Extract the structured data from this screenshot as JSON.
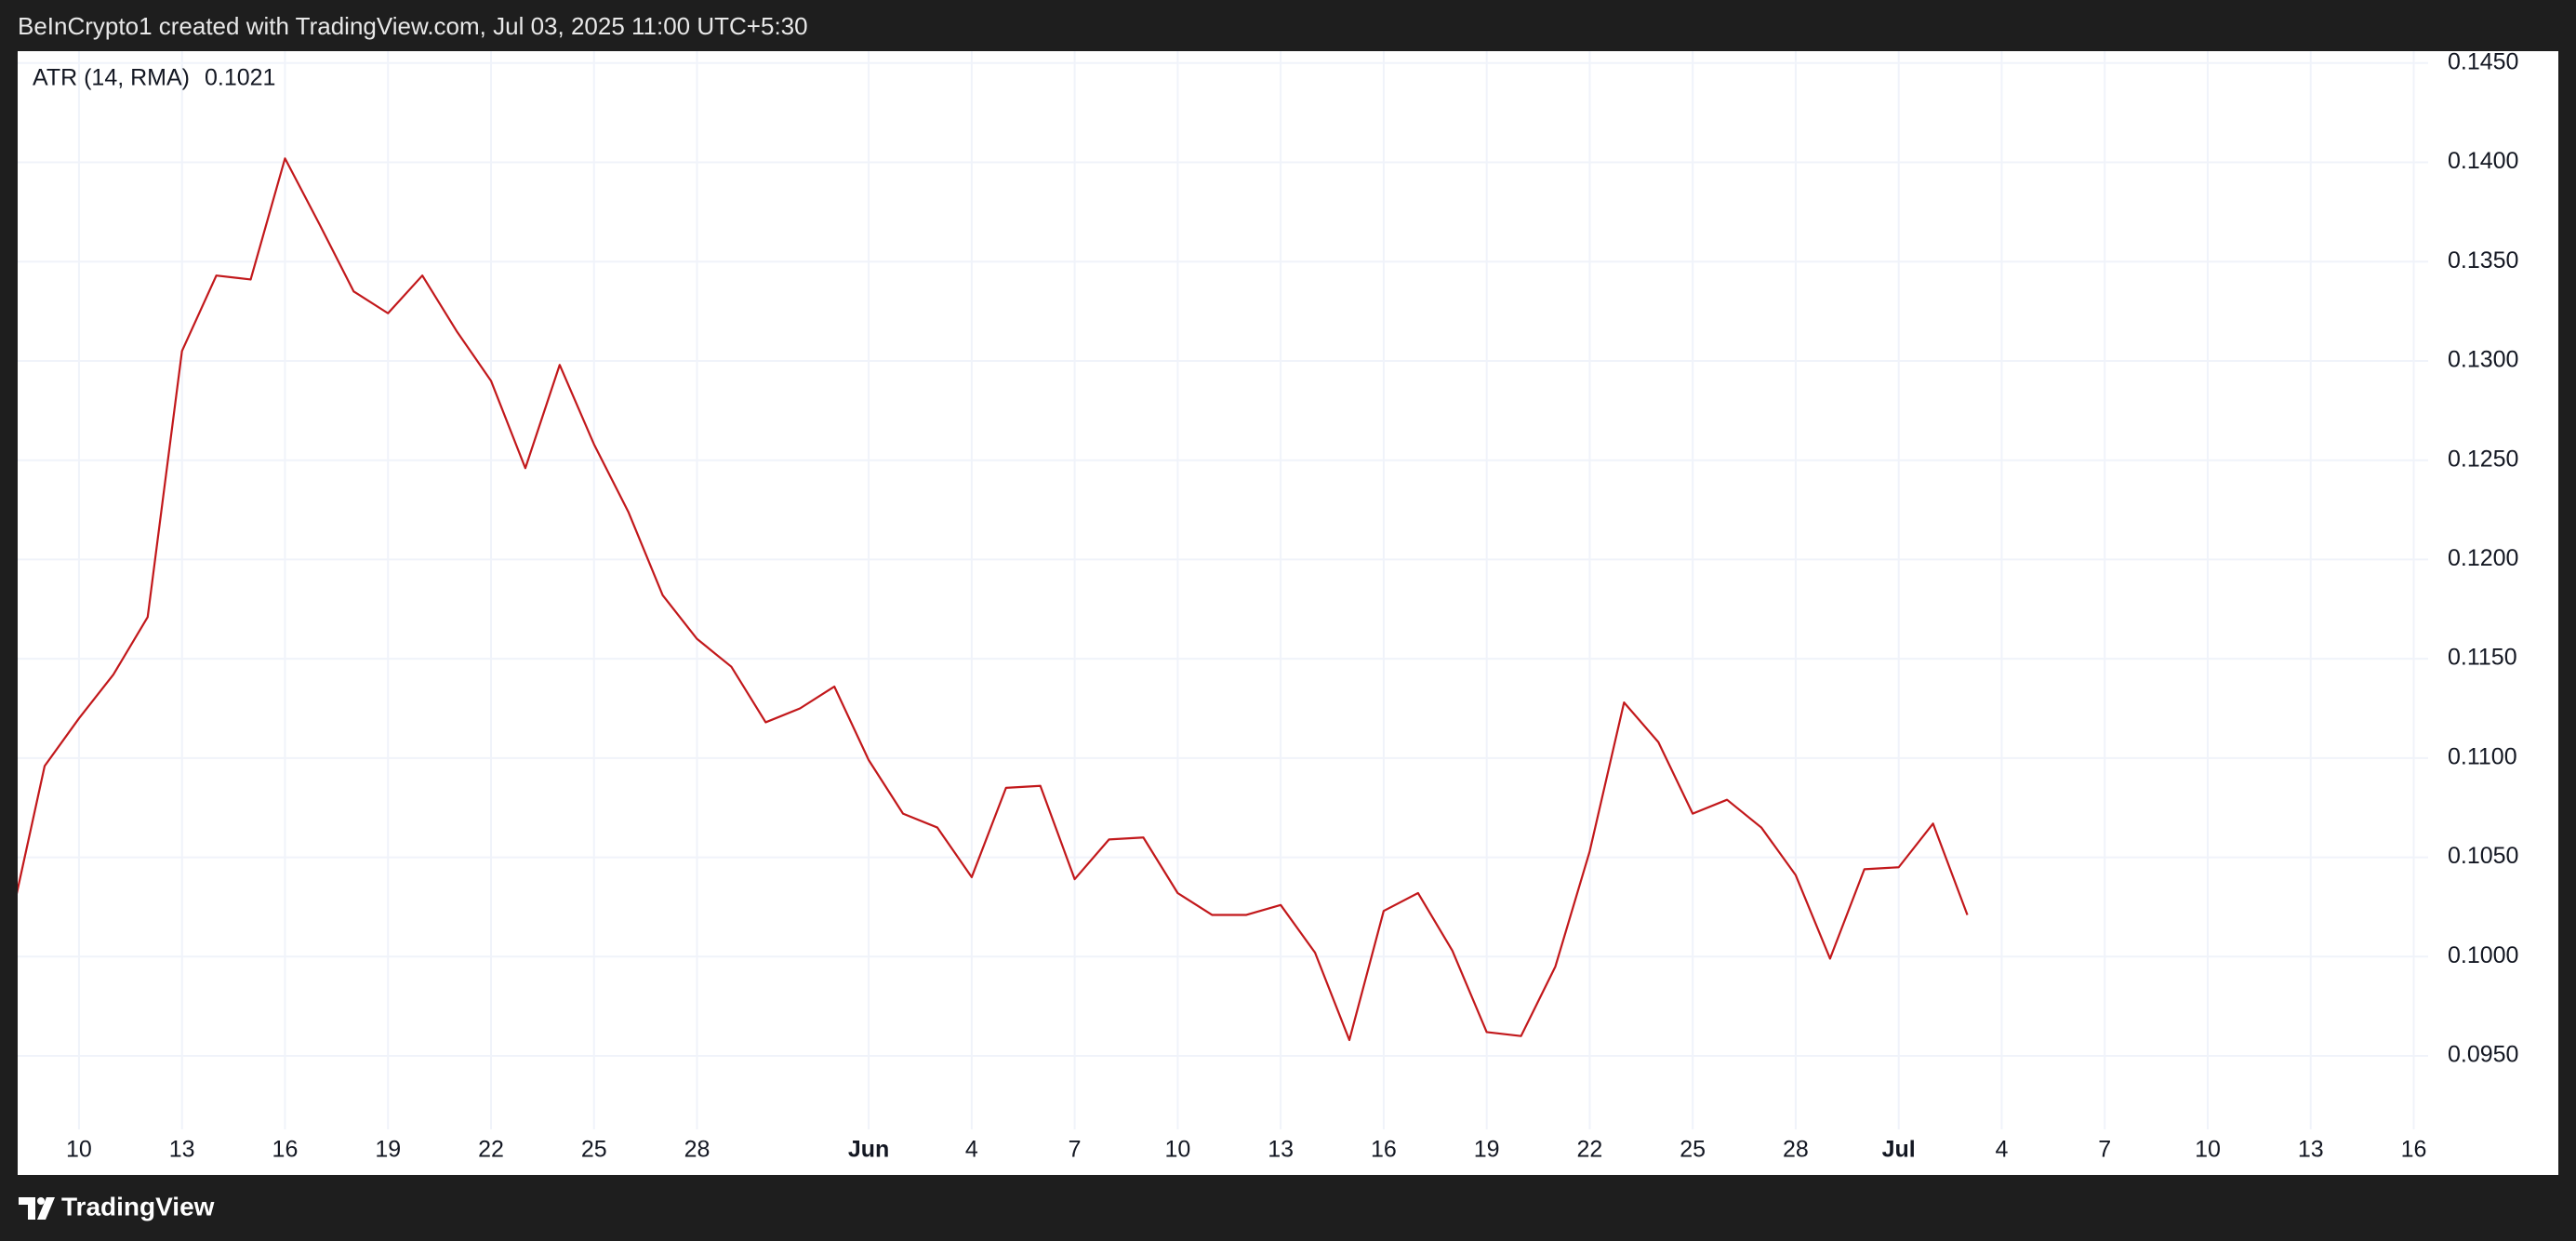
{
  "header": "BeInCrypto1 created with TradingView.com, Jul 03, 2025 11:00 UTC+5:30",
  "footer": "TradingView",
  "chart_data": {
    "type": "line",
    "categories": [
      null,
      null,
      "10",
      null,
      null,
      "13",
      null,
      null,
      "16",
      null,
      null,
      "19",
      null,
      null,
      "22",
      null,
      null,
      "25",
      null,
      null,
      "28",
      null,
      null,
      null,
      null,
      "Jun",
      null,
      null,
      "4",
      null,
      null,
      "7",
      null,
      null,
      "10",
      null,
      null,
      "13",
      null,
      null,
      "16",
      null,
      null,
      "19",
      null,
      null,
      "22",
      null,
      null,
      "25",
      null,
      null,
      "28",
      null,
      null,
      "Jul",
      null,
      null,
      "4",
      null,
      null,
      "7",
      null,
      null,
      "10",
      null,
      null,
      "13",
      null,
      null,
      "16"
    ],
    "series": [
      {
        "name": "ATR (14, RMA)",
        "color": "#c2181b",
        "values": [
          0.1017,
          0.1096,
          0.112,
          0.1142,
          0.1171,
          0.1305,
          0.1343,
          0.1341,
          0.1402,
          0.1369,
          0.1335,
          0.1324,
          0.1343,
          0.1315,
          0.129,
          0.1246,
          0.1298,
          0.1258,
          0.1224,
          0.1182,
          0.116,
          0.1146,
          0.1118,
          0.1125,
          0.1136,
          0.1099,
          0.1072,
          0.1065,
          0.104,
          0.1085,
          0.1086,
          0.1039,
          0.1059,
          0.106,
          0.1032,
          0.1021,
          0.1021,
          0.1026,
          0.1002,
          0.0958,
          0.1023,
          0.1032,
          0.1003,
          0.0962,
          0.096,
          0.0995,
          0.1053,
          0.1128,
          0.1108,
          0.1072,
          0.1079,
          0.1065,
          0.1041,
          0.0999,
          0.1044,
          0.1045,
          0.1067,
          0.1021,
          null,
          null,
          null,
          null,
          null,
          null,
          null,
          null,
          null,
          null,
          null,
          null,
          null
        ]
      }
    ],
    "last_value": 0.1021,
    "ylim": [
      0.0913,
      0.1456
    ],
    "yticks": [
      {
        "value": 0.095,
        "label": "0.0950"
      },
      {
        "value": 0.1,
        "label": "0.1000"
      },
      {
        "value": 0.105,
        "label": "0.1050"
      },
      {
        "value": 0.11,
        "label": "0.1100"
      },
      {
        "value": 0.115,
        "label": "0.1150"
      },
      {
        "value": 0.12,
        "label": "0.1200"
      },
      {
        "value": 0.125,
        "label": "0.1250"
      },
      {
        "value": 0.13,
        "label": "0.1300"
      },
      {
        "value": 0.135,
        "label": "0.1350"
      },
      {
        "value": 0.14,
        "label": "0.1400"
      },
      {
        "value": 0.145,
        "label": "0.1450"
      }
    ],
    "grid": true
  }
}
